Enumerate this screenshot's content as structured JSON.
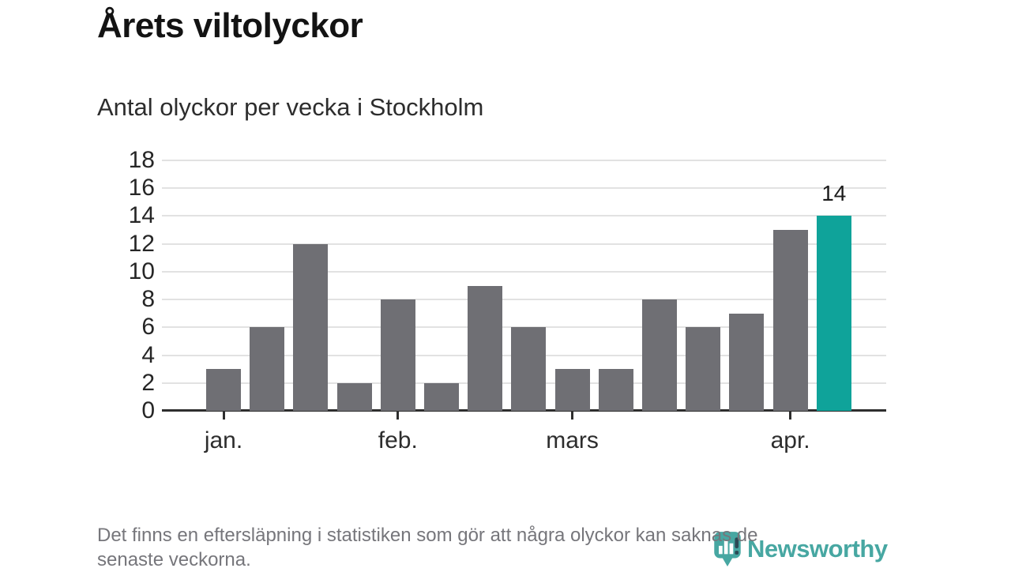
{
  "header": {
    "title": "Årets viltolyckor",
    "subtitle": "Antal olyckor per vecka i Stockholm"
  },
  "chart_data": {
    "type": "bar",
    "title": "Årets viltolyckor",
    "subtitle": "Antal olyckor per vecka i Stockholm",
    "values": [
      3,
      6,
      12,
      2,
      8,
      2,
      9,
      6,
      3,
      3,
      8,
      6,
      7,
      13,
      14
    ],
    "highlight_index": 14,
    "highlight_label": "14",
    "bar_color": "#6f6f74",
    "highlight_color": "#0fa39a",
    "ylim": [
      0,
      18
    ],
    "y_ticks": [
      0,
      2,
      4,
      6,
      8,
      10,
      12,
      14,
      16,
      18
    ],
    "x_month_ticks": [
      {
        "label": "jan.",
        "bar_index": 0
      },
      {
        "label": "feb.",
        "bar_index": 4
      },
      {
        "label": "mars",
        "bar_index": 8
      },
      {
        "label": "apr.",
        "bar_index": 13
      }
    ],
    "grid": true,
    "legend": false
  },
  "footer": {
    "note_lines": [
      "Det finns en eftersläpning i statistiken som gör att några olyckor kan saknas de",
      "senaste veckorna."
    ],
    "logo_text": "Newsworthy"
  },
  "colors": {
    "accent_teal": "#0fa39a",
    "bar_gray": "#6f6f74",
    "axis": "#2e2e2e",
    "gridline": "#e2e2e2",
    "footer_text": "#76767b",
    "logo_teal": "#3aa19b"
  }
}
